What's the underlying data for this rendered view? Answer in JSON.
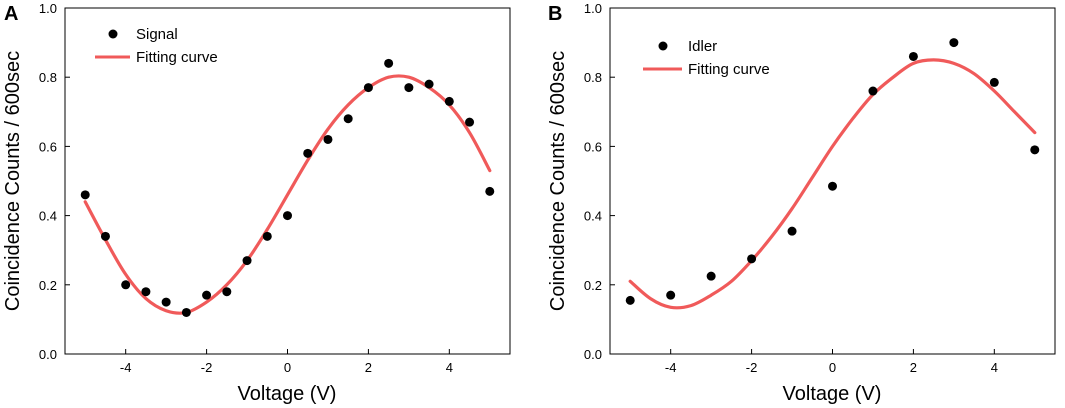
{
  "chart_data": [
    {
      "type": "scatter",
      "panel_label": "A",
      "xlabel": "Voltage (V)",
      "ylabel": "Coincidence Counts / 600sec",
      "xlim": [
        -5.5,
        5.5
      ],
      "ylim": [
        0.0,
        1.0
      ],
      "xticks": [
        -4,
        -2,
        0,
        2,
        4
      ],
      "xtick_labels": [
        "-4",
        "-2",
        "0",
        "2",
        "4"
      ],
      "yticks": [
        0.0,
        0.2,
        0.4,
        0.6,
        0.8,
        1.0
      ],
      "ytick_labels": [
        "0.0",
        "0.2",
        "0.4",
        "0.6",
        "0.8",
        "1.0"
      ],
      "grid": false,
      "legend_position": "top-left",
      "series": [
        {
          "name": "Signal",
          "kind": "points",
          "color": "#000000",
          "x": [
            -5,
            -4.5,
            -4,
            -3.5,
            -3,
            -2.5,
            -2,
            -1.5,
            -1,
            -0.5,
            0,
            0.5,
            1,
            1.5,
            2,
            2.5,
            3,
            3.5,
            4,
            4.5,
            5
          ],
          "y": [
            0.46,
            0.34,
            0.2,
            0.18,
            0.15,
            0.12,
            0.17,
            0.18,
            0.27,
            0.34,
            0.4,
            0.58,
            0.62,
            0.68,
            0.77,
            0.84,
            0.77,
            0.78,
            0.73,
            0.67,
            0.47
          ]
        },
        {
          "name": "Fitting curve",
          "kind": "curve",
          "color": "#f05a5a",
          "x": [
            -5,
            -4.5,
            -4,
            -3.5,
            -3,
            -2.5,
            -2,
            -1.5,
            -1,
            -0.5,
            0,
            0.5,
            1,
            1.5,
            2,
            2.5,
            3,
            3.5,
            4,
            4.5,
            5
          ],
          "y": [
            0.44,
            0.33,
            0.23,
            0.16,
            0.125,
            0.12,
            0.15,
            0.2,
            0.27,
            0.36,
            0.46,
            0.56,
            0.65,
            0.72,
            0.77,
            0.8,
            0.8,
            0.77,
            0.72,
            0.64,
            0.53
          ]
        }
      ]
    },
    {
      "type": "scatter",
      "panel_label": "B",
      "xlabel": "Voltage (V)",
      "ylabel": "Coincidence Counts / 600sec",
      "xlim": [
        -5.5,
        5.5
      ],
      "ylim": [
        0.0,
        1.0
      ],
      "xticks": [
        -4,
        -2,
        0,
        2,
        4
      ],
      "xtick_labels": [
        "-4",
        "-2",
        "0",
        "2",
        "4"
      ],
      "yticks": [
        0.0,
        0.2,
        0.4,
        0.6,
        0.8,
        1.0
      ],
      "ytick_labels": [
        "0.0",
        "0.2",
        "0.4",
        "0.6",
        "0.8",
        "1.0"
      ],
      "grid": false,
      "legend_position": "top-left",
      "series": [
        {
          "name": "Idler",
          "kind": "points",
          "color": "#000000",
          "x": [
            -5,
            -4,
            -3,
            -2,
            -1,
            0,
            1,
            2,
            3,
            4,
            5
          ],
          "y": [
            0.155,
            0.17,
            0.225,
            0.275,
            0.355,
            0.485,
            0.76,
            0.86,
            0.9,
            0.785,
            0.59
          ]
        },
        {
          "name": "Fitting curve",
          "kind": "curve",
          "color": "#f05a5a",
          "x": [
            -5,
            -4.5,
            -4,
            -3.5,
            -3,
            -2.5,
            -2,
            -1.5,
            -1,
            -0.5,
            0,
            0.5,
            1,
            1.5,
            2,
            2.5,
            3,
            3.5,
            4,
            4.5,
            5
          ],
          "y": [
            0.21,
            0.16,
            0.135,
            0.14,
            0.17,
            0.21,
            0.27,
            0.34,
            0.42,
            0.51,
            0.6,
            0.68,
            0.75,
            0.8,
            0.84,
            0.85,
            0.84,
            0.81,
            0.76,
            0.7,
            0.64
          ]
        }
      ]
    }
  ]
}
